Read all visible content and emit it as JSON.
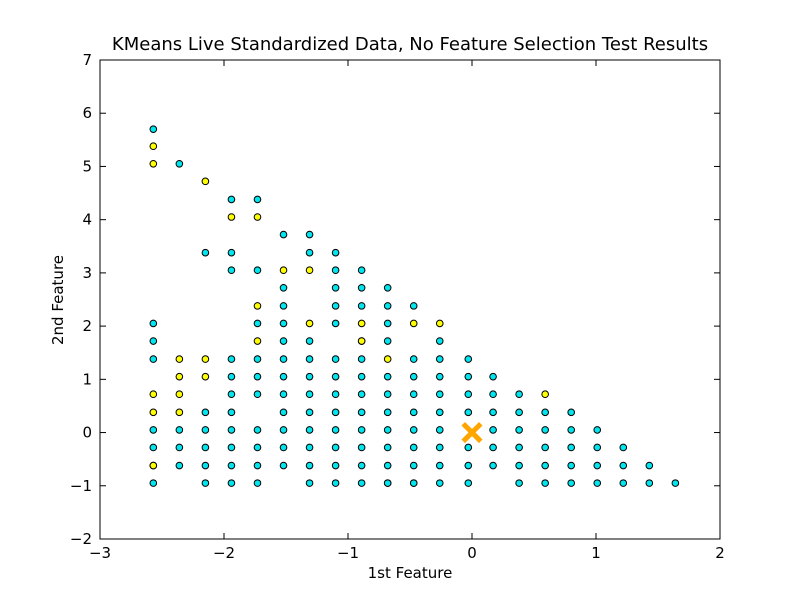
{
  "chart_data": {
    "type": "scatter",
    "title": "KMeans Live Standardized Data, No Feature Selection Test Results",
    "xlabel": "1st Feature",
    "ylabel": "2nd Feature",
    "xlim": [
      -3,
      2
    ],
    "ylim": [
      -2,
      7
    ],
    "xticks": [
      "−3",
      "−2",
      "−1",
      "0",
      "1",
      "2"
    ],
    "yticks": [
      "−2",
      "−1",
      "0",
      "1",
      "2",
      "3",
      "4",
      "5",
      "6",
      "7"
    ],
    "grid": false,
    "legend": "none",
    "series": [
      {
        "color": "#00e5ee",
        "x": [
          -2.57,
          -2.57,
          -2.57,
          -2.57,
          -2.57,
          -2.57,
          -2.57,
          -2.57,
          -2.36,
          -2.36,
          -2.36,
          -2.36,
          -2.15,
          -2.15,
          -2.15,
          -2.15,
          -2.15,
          -2.15,
          -1.94,
          -1.94,
          -1.94,
          -1.94,
          -1.94,
          -1.94,
          -1.94,
          -1.94,
          -1.94,
          -1.94,
          -1.94,
          -1.73,
          -1.73,
          -1.73,
          -1.73,
          -1.73,
          -1.73,
          -1.73,
          -1.73,
          -1.73,
          -1.73,
          -1.52,
          -1.52,
          -1.52,
          -1.52,
          -1.52,
          -1.52,
          -1.52,
          -1.52,
          -1.52,
          -1.52,
          -1.52,
          -1.52,
          -1.31,
          -1.31,
          -1.31,
          -1.31,
          -1.31,
          -1.31,
          -1.31,
          -1.31,
          -1.31,
          -1.31,
          -1.31,
          -1.1,
          -1.1,
          -1.1,
          -1.1,
          -1.1,
          -1.1,
          -1.1,
          -1.1,
          -1.1,
          -1.1,
          -1.1,
          -1.1,
          -1.1,
          -0.89,
          -0.89,
          -0.89,
          -0.89,
          -0.89,
          -0.89,
          -0.89,
          -0.89,
          -0.89,
          -0.89,
          -0.89,
          -0.89,
          -0.68,
          -0.68,
          -0.68,
          -0.68,
          -0.68,
          -0.68,
          -0.68,
          -0.68,
          -0.68,
          -0.68,
          -0.68,
          -0.68,
          -0.47,
          -0.47,
          -0.47,
          -0.47,
          -0.47,
          -0.47,
          -0.47,
          -0.47,
          -0.47,
          -0.47,
          -0.26,
          -0.26,
          -0.26,
          -0.26,
          -0.26,
          -0.26,
          -0.26,
          -0.26,
          -0.26,
          -0.03,
          -0.03,
          -0.03,
          -0.03,
          -0.03,
          -0.03,
          -0.03,
          0.17,
          0.17,
          0.17,
          0.17,
          0.17,
          0.17,
          0.38,
          0.38,
          0.38,
          0.38,
          0.38,
          0.38,
          0.59,
          0.59,
          0.59,
          0.59,
          0.59,
          0.8,
          0.8,
          0.8,
          0.8,
          0.8,
          1.01,
          1.01,
          1.01,
          1.01,
          1.22,
          1.22,
          1.22,
          1.43,
          1.43,
          1.64
        ],
        "y": [
          5.7,
          2.05,
          1.72,
          1.38,
          0.05,
          -0.28,
          -0.62,
          -0.95,
          5.05,
          0.05,
          -0.28,
          -0.62,
          3.38,
          0.38,
          0.05,
          -0.28,
          -0.62,
          -0.95,
          4.38,
          3.38,
          3.05,
          1.38,
          1.05,
          0.72,
          0.38,
          0.05,
          -0.28,
          -0.62,
          -0.95,
          4.38,
          3.05,
          2.05,
          1.38,
          1.05,
          0.72,
          0.05,
          -0.28,
          -0.62,
          -0.95,
          3.72,
          2.72,
          2.38,
          2.05,
          1.72,
          1.38,
          1.05,
          0.72,
          0.38,
          0.05,
          -0.28,
          -0.62,
          3.72,
          3.38,
          1.72,
          1.38,
          1.05,
          0.72,
          0.38,
          0.05,
          -0.28,
          -0.62,
          -0.95,
          3.38,
          3.05,
          2.72,
          2.38,
          2.05,
          1.38,
          1.05,
          0.72,
          0.38,
          0.05,
          -0.28,
          -0.62,
          -0.95,
          3.05,
          2.72,
          2.38,
          1.72,
          1.38,
          1.05,
          0.72,
          0.38,
          0.05,
          -0.28,
          -0.62,
          -0.95,
          2.72,
          2.38,
          2.05,
          1.72,
          1.05,
          0.72,
          0.38,
          0.05,
          -0.28,
          -0.62,
          -0.95,
          -0.95,
          2.38,
          1.38,
          1.05,
          0.72,
          0.38,
          0.05,
          -0.28,
          -0.62,
          -0.95,
          -0.95,
          1.72,
          1.38,
          1.05,
          0.72,
          0.38,
          0.05,
          -0.28,
          -0.62,
          -0.95,
          1.38,
          1.05,
          0.72,
          0.38,
          -0.28,
          -0.62,
          -0.95,
          1.05,
          0.72,
          0.38,
          0.05,
          -0.28,
          -0.62,
          0.72,
          0.38,
          0.05,
          -0.28,
          -0.62,
          -0.95,
          0.38,
          0.05,
          -0.28,
          -0.62,
          -0.95,
          0.38,
          0.05,
          -0.28,
          -0.62,
          -0.95,
          0.05,
          -0.28,
          -0.62,
          -0.95,
          -0.28,
          -0.62,
          -0.95,
          -0.62,
          -0.95,
          -0.95
        ]
      },
      {
        "color": "#ffff00",
        "x": [
          -2.57,
          -2.57,
          -2.57,
          -2.57,
          -2.57,
          -2.36,
          -2.36,
          -2.36,
          -2.36,
          -2.15,
          -2.15,
          -2.15,
          -1.94,
          -1.73,
          -1.73,
          -1.73,
          -1.52,
          -1.31,
          -1.31,
          -0.89,
          -0.89,
          -0.68,
          -0.47,
          -0.26,
          0.59
        ],
        "y": [
          5.38,
          5.05,
          0.72,
          0.38,
          -0.62,
          1.38,
          1.05,
          0.72,
          0.38,
          4.72,
          1.38,
          1.05,
          4.05,
          4.05,
          2.38,
          1.72,
          3.05,
          3.05,
          2.05,
          2.05,
          1.72,
          1.38,
          2.05,
          2.05,
          0.72
        ]
      }
    ],
    "centroids": [
      {
        "x": 0.0,
        "y": 0.0,
        "color": "#ffa500",
        "marker": "x"
      }
    ]
  }
}
